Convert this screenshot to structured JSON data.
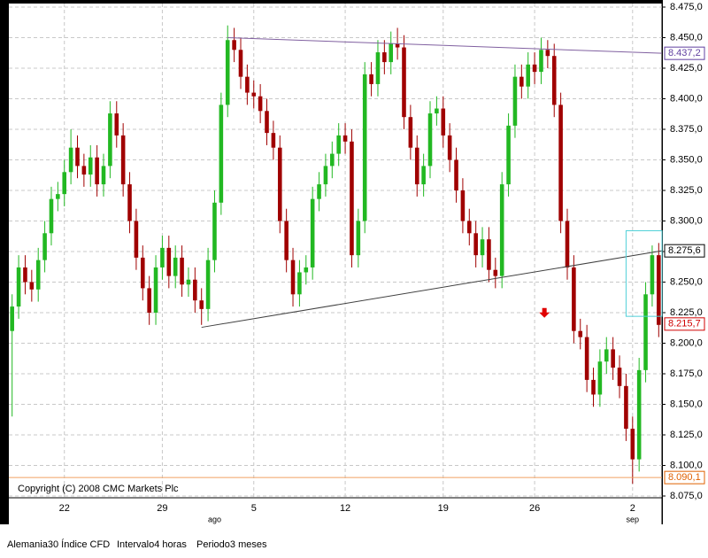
{
  "chart_data": {
    "type": "candlestick",
    "copyright": "Copyright (C) 2008 CMC Markets Plc",
    "footer": [
      "Alemania30 Índice CFD",
      "Intervalo4 horas",
      "Periodo3 meses"
    ],
    "up_color": "#22b822",
    "down_color": "#a00000",
    "grid": true,
    "xlim": [
      -0.5,
      99.5
    ],
    "xticks": [
      {
        "value": 8,
        "label": "22"
      },
      {
        "value": 23,
        "label": "29"
      },
      {
        "value": 37,
        "label": "5"
      },
      {
        "value": 51,
        "label": "12"
      },
      {
        "value": 66,
        "label": "19"
      },
      {
        "value": 80,
        "label": "26"
      },
      {
        "value": 95,
        "label": "2"
      }
    ],
    "month_labels": [
      {
        "value": 31,
        "label": "ago"
      },
      {
        "value": 95,
        "label": "sep"
      }
    ],
    "ylim": [
      8075,
      8475
    ],
    "yticks": [
      {
        "value": 8075,
        "label": "8.075,0"
      },
      {
        "value": 8100,
        "label": "8.100,0"
      },
      {
        "value": 8125,
        "label": "8.125,0"
      },
      {
        "value": 8150,
        "label": "8.150,0"
      },
      {
        "value": 8175,
        "label": "8.175,0"
      },
      {
        "value": 8200,
        "label": "8.200,0"
      },
      {
        "value": 8225,
        "label": "8.225,0"
      },
      {
        "value": 8250,
        "label": "8.250,0"
      },
      {
        "value": 8275,
        "label": "8.275,0"
      },
      {
        "value": 8300,
        "label": "8.300,0"
      },
      {
        "value": 8325,
        "label": "8.325,0"
      },
      {
        "value": 8350,
        "label": "8.350,0"
      },
      {
        "value": 8375,
        "label": "8.375,0"
      },
      {
        "value": 8400,
        "label": "8.400,0"
      },
      {
        "value": 8425,
        "label": "8.425,0"
      },
      {
        "value": 8450,
        "label": "8.450,0"
      },
      {
        "value": 8475,
        "label": "8.475,0"
      }
    ],
    "open": [
      8210,
      8230,
      8262,
      8250,
      8244,
      8268,
      8290,
      8318,
      8322,
      8340,
      8360,
      8345,
      8338,
      8352,
      8330,
      8345,
      8388,
      8370,
      8330,
      8300,
      8270,
      8245,
      8225,
      8262,
      8278,
      8255,
      8270,
      8248,
      8252,
      8235,
      8228,
      8268,
      8315,
      8395,
      8448,
      8440,
      8418,
      8405,
      8402,
      8390,
      8372,
      8360,
      8300,
      8268,
      8240,
      8258,
      8262,
      8318,
      8330,
      8345,
      8355,
      8370,
      8365,
      8272,
      8300,
      8420,
      8412,
      8438,
      8430,
      8445,
      8442,
      8385,
      8360,
      8330,
      8345,
      8388,
      8392,
      8370,
      8350,
      8325,
      8300,
      8290,
      8272,
      8285,
      8260,
      8255,
      8330,
      8378,
      8418,
      8410,
      8428,
      8422,
      8440,
      8435,
      8395,
      8300,
      8262,
      8210,
      8205,
      8170,
      8158,
      8185,
      8195,
      8180,
      8165,
      8130,
      8105,
      8178,
      8240,
      8272
    ],
    "high": [
      8240,
      8272,
      8272,
      8260,
      8278,
      8300,
      8328,
      8332,
      8350,
      8375,
      8370,
      8355,
      8362,
      8362,
      8355,
      8398,
      8398,
      8380,
      8340,
      8310,
      8280,
      8255,
      8272,
      8288,
      8288,
      8280,
      8280,
      8262,
      8262,
      8245,
      8278,
      8325,
      8405,
      8460,
      8458,
      8450,
      8428,
      8415,
      8412,
      8400,
      8382,
      8370,
      8310,
      8278,
      8268,
      8272,
      8328,
      8340,
      8355,
      8365,
      8380,
      8380,
      8375,
      8310,
      8430,
      8430,
      8448,
      8448,
      8455,
      8458,
      8452,
      8395,
      8370,
      8355,
      8398,
      8402,
      8402,
      8380,
      8360,
      8335,
      8310,
      8300,
      8295,
      8295,
      8270,
      8340,
      8388,
      8428,
      8428,
      8438,
      8438,
      8450,
      8448,
      8445,
      8405,
      8310,
      8272,
      8220,
      8215,
      8180,
      8195,
      8205,
      8205,
      8190,
      8175,
      8140,
      8188,
      8250,
      8280,
      8282
    ],
    "low": [
      8140,
      8220,
      8240,
      8234,
      8234,
      8258,
      8280,
      8308,
      8312,
      8330,
      8335,
      8328,
      8328,
      8320,
      8320,
      8335,
      8360,
      8320,
      8290,
      8260,
      8235,
      8215,
      8215,
      8252,
      8245,
      8245,
      8238,
      8238,
      8225,
      8215,
      8218,
      8258,
      8305,
      8385,
      8430,
      8408,
      8395,
      8392,
      8380,
      8362,
      8350,
      8290,
      8258,
      8230,
      8230,
      8248,
      8252,
      8308,
      8320,
      8335,
      8345,
      8355,
      8262,
      8262,
      8290,
      8402,
      8402,
      8420,
      8420,
      8432,
      8375,
      8350,
      8320,
      8320,
      8335,
      8378,
      8360,
      8340,
      8315,
      8290,
      8280,
      8262,
      8262,
      8250,
      8245,
      8245,
      8320,
      8368,
      8400,
      8400,
      8412,
      8412,
      8425,
      8385,
      8290,
      8252,
      8200,
      8195,
      8160,
      8148,
      8148,
      8175,
      8170,
      8155,
      8120,
      8085,
      8095,
      8168,
      8230,
      8205
    ],
    "close": [
      8230,
      8262,
      8250,
      8244,
      8268,
      8290,
      8318,
      8322,
      8340,
      8360,
      8345,
      8338,
      8352,
      8330,
      8345,
      8388,
      8370,
      8330,
      8300,
      8270,
      8245,
      8225,
      8262,
      8278,
      8255,
      8270,
      8248,
      8252,
      8235,
      8228,
      8268,
      8315,
      8395,
      8448,
      8440,
      8418,
      8405,
      8402,
      8390,
      8372,
      8360,
      8300,
      8268,
      8240,
      8258,
      8262,
      8318,
      8330,
      8345,
      8355,
      8370,
      8365,
      8272,
      8300,
      8420,
      8412,
      8438,
      8430,
      8445,
      8442,
      8385,
      8360,
      8330,
      8345,
      8388,
      8392,
      8370,
      8350,
      8325,
      8300,
      8290,
      8272,
      8285,
      8260,
      8255,
      8330,
      8378,
      8418,
      8410,
      8428,
      8422,
      8440,
      8435,
      8395,
      8300,
      8262,
      8210,
      8205,
      8170,
      8158,
      8185,
      8195,
      8180,
      8165,
      8130,
      8105,
      8178,
      8240,
      8272,
      8215
    ],
    "trendlines": [
      {
        "color": "#8060a0",
        "from": [
          33,
          8450
        ],
        "to": [
          99.5,
          8437.2
        ]
      },
      {
        "color": "#404040",
        "from": [
          29,
          8213
        ],
        "to": [
          99.5,
          8275.6
        ]
      }
    ],
    "box": {
      "color": "#50d0d8",
      "x": [
        94,
        99.5
      ],
      "y": [
        8222,
        8292
      ]
    },
    "arrow": {
      "color": "#e00000",
      "x": 81.5,
      "y": 8223
    },
    "hline": {
      "color": "#f0a060",
      "value": 8090.1
    },
    "price_labels": [
      {
        "value": 8437.2,
        "label": "8.437,2",
        "color": "#6040a0"
      },
      {
        "value": 8275.6,
        "label": "8.275,6",
        "color": "#000000"
      },
      {
        "value": 8215.7,
        "label": "8.215,7",
        "color": "#d00000"
      },
      {
        "value": 8090.1,
        "label": "8.090,1",
        "color": "#e06000"
      }
    ]
  }
}
